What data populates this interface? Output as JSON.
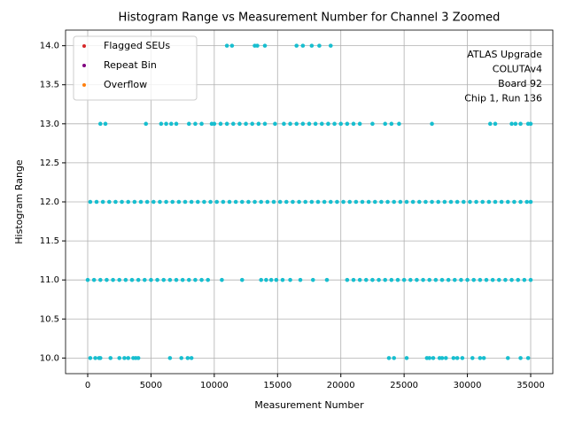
{
  "chart_data": {
    "type": "scatter",
    "title": "Histogram Range vs Measurement Number for Channel 3 Zoomed",
    "x_label": "Measurement Number",
    "y_label": "Histogram Range",
    "annotation": [
      "ATLAS Upgrade",
      "COLUTAv4",
      " Board 92",
      "Chip 1, Run 136"
    ],
    "color": "#17becf",
    "x": [
      11000,
      11400,
      13200,
      13400,
      14000,
      16500,
      17000,
      17700,
      18300,
      19200,
      1000,
      1400,
      4600,
      5800,
      6200,
      6600,
      7000,
      8000,
      8500,
      9000,
      9800,
      10000,
      10500,
      11000,
      11500,
      12000,
      12500,
      13000,
      13500,
      14000,
      14800,
      15500,
      16000,
      16500,
      17000,
      17500,
      18000,
      18500,
      19000,
      19500,
      20000,
      20500,
      21000,
      21500,
      22500,
      23500,
      24000,
      24600,
      27200,
      31800,
      32200,
      33500,
      33800,
      34200,
      34800,
      35000,
      200,
      700,
      1200,
      1700,
      2200,
      2700,
      3200,
      3700,
      4200,
      4700,
      5200,
      5700,
      6200,
      6700,
      7200,
      7700,
      8200,
      8700,
      9200,
      9700,
      10200,
      10700,
      11200,
      11700,
      12200,
      12700,
      13200,
      13700,
      14200,
      14700,
      15200,
      15700,
      16200,
      16700,
      17200,
      17700,
      18200,
      18700,
      19200,
      19700,
      20200,
      20700,
      21200,
      21700,
      22200,
      22700,
      23200,
      23700,
      24200,
      24700,
      25200,
      25700,
      26200,
      26700,
      27200,
      27700,
      28200,
      28700,
      29200,
      29700,
      30200,
      30700,
      31200,
      31700,
      32200,
      32700,
      33200,
      33700,
      34200,
      34700,
      35000,
      0,
      500,
      1000,
      1500,
      2000,
      2500,
      3000,
      3500,
      4000,
      4500,
      5000,
      5500,
      6000,
      6500,
      7000,
      7500,
      8000,
      8500,
      9000,
      9500,
      10600,
      12200,
      13700,
      14100,
      14500,
      14900,
      15400,
      16000,
      16800,
      17800,
      18900,
      20500,
      21000,
      21500,
      22000,
      22500,
      23000,
      23500,
      24000,
      24500,
      25000,
      25500,
      26000,
      26500,
      27000,
      27500,
      28000,
      28500,
      29000,
      29500,
      30000,
      30500,
      31000,
      31500,
      32000,
      32500,
      33000,
      33500,
      34000,
      34500,
      35000,
      200,
      600,
      900,
      1000,
      1800,
      2500,
      2900,
      3200,
      3600,
      3800,
      4000,
      6500,
      7400,
      7900,
      8200,
      23800,
      24200,
      25200,
      26800,
      27000,
      27300,
      27800,
      28000,
      28300,
      28900,
      29200,
      29600,
      30400,
      31000,
      31300,
      33200,
      34200,
      34800
    ],
    "values": [
      14,
      14,
      14,
      14,
      14,
      14,
      14,
      14,
      14,
      14,
      13,
      13,
      13,
      13,
      13,
      13,
      13,
      13,
      13,
      13,
      13,
      13,
      13,
      13,
      13,
      13,
      13,
      13,
      13,
      13,
      13,
      13,
      13,
      13,
      13,
      13,
      13,
      13,
      13,
      13,
      13,
      13,
      13,
      13,
      13,
      13,
      13,
      13,
      13,
      13,
      13,
      13,
      13,
      13,
      13,
      13,
      12,
      12,
      12,
      12,
      12,
      12,
      12,
      12,
      12,
      12,
      12,
      12,
      12,
      12,
      12,
      12,
      12,
      12,
      12,
      12,
      12,
      12,
      12,
      12,
      12,
      12,
      12,
      12,
      12,
      12,
      12,
      12,
      12,
      12,
      12,
      12,
      12,
      12,
      12,
      12,
      12,
      12,
      12,
      12,
      12,
      12,
      12,
      12,
      12,
      12,
      12,
      12,
      12,
      12,
      12,
      12,
      12,
      12,
      12,
      12,
      12,
      12,
      12,
      12,
      12,
      12,
      12,
      12,
      12,
      12,
      12,
      11,
      11,
      11,
      11,
      11,
      11,
      11,
      11,
      11,
      11,
      11,
      11,
      11,
      11,
      11,
      11,
      11,
      11,
      11,
      11,
      11,
      11,
      11,
      11,
      11,
      11,
      11,
      11,
      11,
      11,
      11,
      11,
      11,
      11,
      11,
      11,
      11,
      11,
      11,
      11,
      11,
      11,
      11,
      11,
      11,
      11,
      11,
      11,
      11,
      11,
      11,
      11,
      11,
      11,
      11,
      11,
      11,
      11,
      11,
      11,
      11,
      10,
      10,
      10,
      10,
      10,
      10,
      10,
      10,
      10,
      10,
      10,
      10,
      10,
      10,
      10,
      10,
      10,
      10,
      10,
      10,
      10,
      10,
      10,
      10,
      10,
      10,
      10,
      10,
      10,
      10,
      10,
      10,
      10
    ],
    "series": [
      {
        "name": "Flagged SEUs",
        "color": "#d62728",
        "x": [],
        "values": []
      },
      {
        "name": "Repeat Bin",
        "color": "#800080",
        "x": [],
        "values": []
      },
      {
        "name": "Overflow",
        "color": "#ff7f0e",
        "x": [],
        "values": []
      }
    ],
    "legend": "upper left",
    "xlim": [
      -1750,
      36750
    ],
    "xticks": [
      0,
      5000,
      10000,
      15000,
      20000,
      25000,
      30000,
      35000
    ],
    "ylim": [
      9.8,
      14.2
    ],
    "yticks": [
      {
        "value": 10,
        "label": "10.0"
      },
      {
        "value": 10.5,
        "label": "10.5"
      },
      {
        "value": 11,
        "label": "11.0"
      },
      {
        "value": 11.5,
        "label": "11.5"
      },
      {
        "value": 12,
        "label": "12.0"
      },
      {
        "value": 12.5,
        "label": "12.5"
      },
      {
        "value": 13,
        "label": "13.0"
      },
      {
        "value": 13.5,
        "label": "13.5"
      },
      {
        "value": 14,
        "label": "14.0"
      }
    ],
    "grid": true
  }
}
